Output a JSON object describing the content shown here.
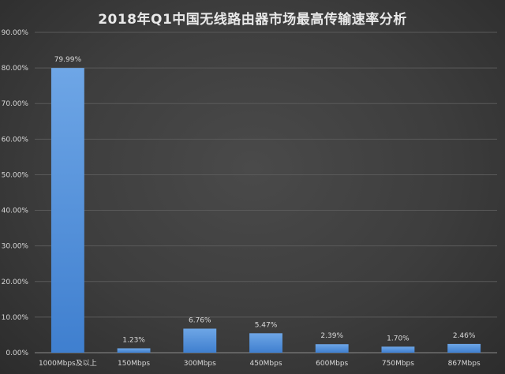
{
  "chart_data": {
    "type": "bar",
    "title": "2018年Q1中国无线路由器市场最高传输速率分析",
    "xlabel": "",
    "ylabel": "",
    "categories": [
      "1000Mbps及以上",
      "150Mbps",
      "300Mbps",
      "450Mbps",
      "600Mbps",
      "750Mbps",
      "867Mbps"
    ],
    "values": [
      79.99,
      1.23,
      6.76,
      5.47,
      2.39,
      1.7,
      2.46
    ],
    "value_labels": [
      "79.99%",
      "1.23%",
      "6.76%",
      "5.47%",
      "2.39%",
      "1.70%",
      "2.46%"
    ],
    "ylim": [
      0,
      90
    ],
    "yticks": [
      0,
      10,
      20,
      30,
      40,
      50,
      60,
      70,
      80,
      90
    ],
    "ytick_labels": [
      "0.00%",
      "10.00%",
      "20.00%",
      "30.00%",
      "40.00%",
      "50.00%",
      "60.00%",
      "70.00%",
      "80.00%",
      "90.00%"
    ],
    "grid": true,
    "legend": "none",
    "colors": {
      "bar_top": "#6ea6e6",
      "bar_bottom": "#3f7fcf",
      "background": "#3d3d3d",
      "text": "#d9d9d9",
      "grid": "#5a5a5a"
    }
  }
}
